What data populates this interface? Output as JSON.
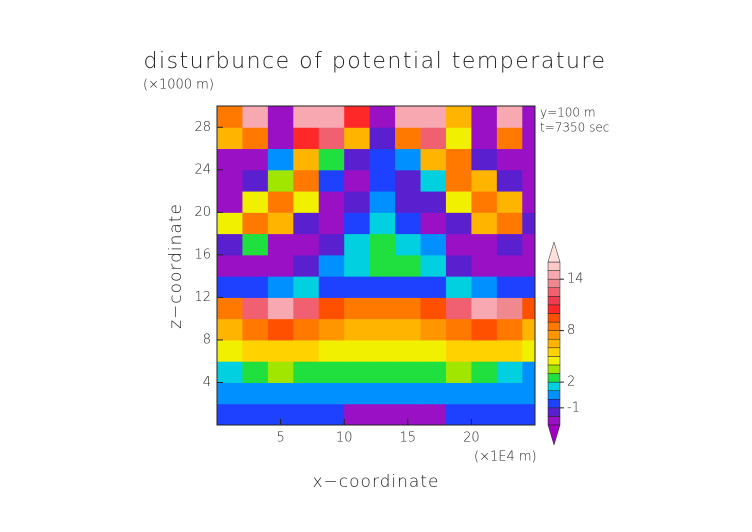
{
  "chart_data": {
    "type": "contour",
    "title": "disturbunce of potential temperature",
    "y_unit": "(×1000 m)",
    "x_unit": "(×1E4 m)",
    "xlabel": "x−coordinate",
    "ylabel": "z−coordinate",
    "annotations": [
      "y=100 m",
      "t=7350 sec"
    ],
    "xlim": [
      0,
      25
    ],
    "xticks": [
      5,
      10,
      15,
      20
    ],
    "ylim": [
      0,
      30
    ],
    "yticks": [
      4,
      8,
      12,
      16,
      20,
      24,
      28
    ],
    "x": [
      1,
      3,
      5,
      7,
      9,
      11,
      13,
      15,
      17,
      19,
      21,
      23,
      25
    ],
    "z": [
      1,
      3,
      5,
      7,
      9,
      11,
      13,
      15,
      17,
      19,
      21,
      23,
      25,
      27,
      29
    ],
    "field": [
      [
        -0.5,
        -0.5,
        -0.5,
        -0.5,
        -1,
        -3,
        -3,
        -3,
        -3,
        -1,
        -0.5,
        -0.5,
        -0.5
      ],
      [
        0,
        0,
        0,
        0,
        0,
        0,
        0,
        0,
        0,
        0,
        0,
        0,
        0
      ],
      [
        1,
        2,
        3,
        2,
        2,
        2,
        2,
        2,
        2,
        3,
        2,
        1,
        0.5
      ],
      [
        4,
        5,
        5,
        5,
        4,
        4,
        4,
        4,
        4,
        5,
        5,
        5,
        4
      ],
      [
        6,
        8,
        9,
        8,
        7,
        6,
        6,
        6,
        7,
        8,
        9,
        8,
        6
      ],
      [
        8,
        12,
        14,
        12,
        9,
        8,
        8,
        8,
        9,
        12,
        14,
        13,
        9
      ],
      [
        -1,
        -1,
        0,
        1,
        -1,
        -1,
        -1,
        -1,
        -1,
        1,
        0,
        -1,
        -1
      ],
      [
        -3,
        -3,
        -3,
        -2,
        0,
        1,
        2,
        2,
        1,
        -2,
        -3,
        -3,
        -3
      ],
      [
        -2,
        2,
        -3,
        -3,
        -2,
        1,
        2,
        1,
        0,
        -3,
        -3,
        -2,
        -3
      ],
      [
        4,
        8,
        6,
        -2,
        -3,
        -1,
        1,
        -1,
        -3,
        -2,
        6,
        8,
        -2
      ],
      [
        -3,
        4,
        8,
        4,
        -3,
        -2,
        0,
        -2,
        -2,
        4,
        8,
        6,
        -3
      ],
      [
        -3,
        -2,
        3,
        8,
        -1,
        -3,
        -1,
        -2,
        1,
        8,
        6,
        -2,
        -3
      ],
      [
        -3,
        -3,
        0,
        6,
        2,
        -2,
        -1,
        0,
        6,
        8,
        -2,
        -3,
        -3
      ],
      [
        6,
        8,
        -3,
        10,
        12,
        6,
        -2,
        8,
        12,
        4,
        -3,
        8,
        -3
      ],
      [
        8,
        14,
        -3,
        14,
        14,
        10,
        -3,
        14,
        14,
        6,
        -3,
        14,
        -3
      ]
    ],
    "levels": [
      -3,
      -2,
      -1,
      0,
      1,
      2,
      3,
      4,
      5,
      6,
      7,
      8,
      9,
      10,
      11,
      12,
      13,
      14,
      15,
      16
    ],
    "colors": [
      "#a000c0",
      "#9a10c4",
      "#5a20d0",
      "#1e40ff",
      "#0090ff",
      "#00d0e0",
      "#20e040",
      "#a0e600",
      "#f0f000",
      "#ffd200",
      "#ffb400",
      "#ff9600",
      "#ff7800",
      "#ff5000",
      "#ff2828",
      "#f03c50",
      "#f06070",
      "#f08890",
      "#f8a8b0",
      "#fcc8c8",
      "#ffe0dc"
    ],
    "colorbar_ticks": [
      -1,
      2,
      8,
      14
    ]
  }
}
